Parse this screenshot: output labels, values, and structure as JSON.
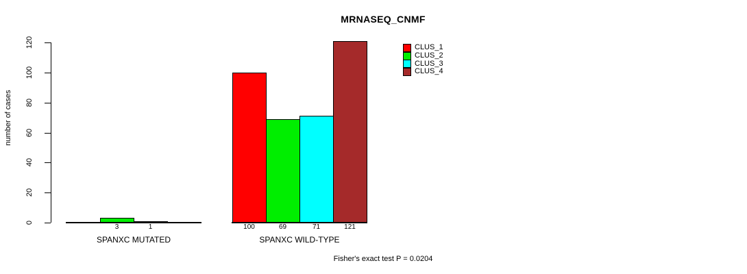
{
  "title": "MRNASEQ_CNMF",
  "footer": "Fisher's exact test P = 0.0204",
  "chart_data": {
    "type": "bar",
    "title": "MRNASEQ_CNMF",
    "xlabel": "",
    "ylabel": "number of cases",
    "ylim": [
      0,
      120
    ],
    "yticks": [
      0,
      20,
      40,
      60,
      80,
      100,
      120
    ],
    "grid": false,
    "legend_position": "top-right",
    "categories": [
      "SPANXC MUTATED",
      "SPANXC WILD-TYPE"
    ],
    "series": [
      {
        "name": "CLUS_1",
        "color": "#ff0000",
        "values": [
          0,
          100
        ]
      },
      {
        "name": "CLUS_2",
        "color": "#00ee00",
        "values": [
          3,
          69
        ]
      },
      {
        "name": "CLUS_3",
        "color": "#00ffff",
        "values": [
          1,
          71
        ]
      },
      {
        "name": "CLUS_4",
        "color": "#a52a2a",
        "values": [
          0,
          121
        ]
      }
    ],
    "bar_labels": [
      [
        "",
        "3",
        "1",
        ""
      ],
      [
        "100",
        "69",
        "71",
        "121"
      ]
    ],
    "annotation": "Fisher's exact test P = 0.0204"
  }
}
